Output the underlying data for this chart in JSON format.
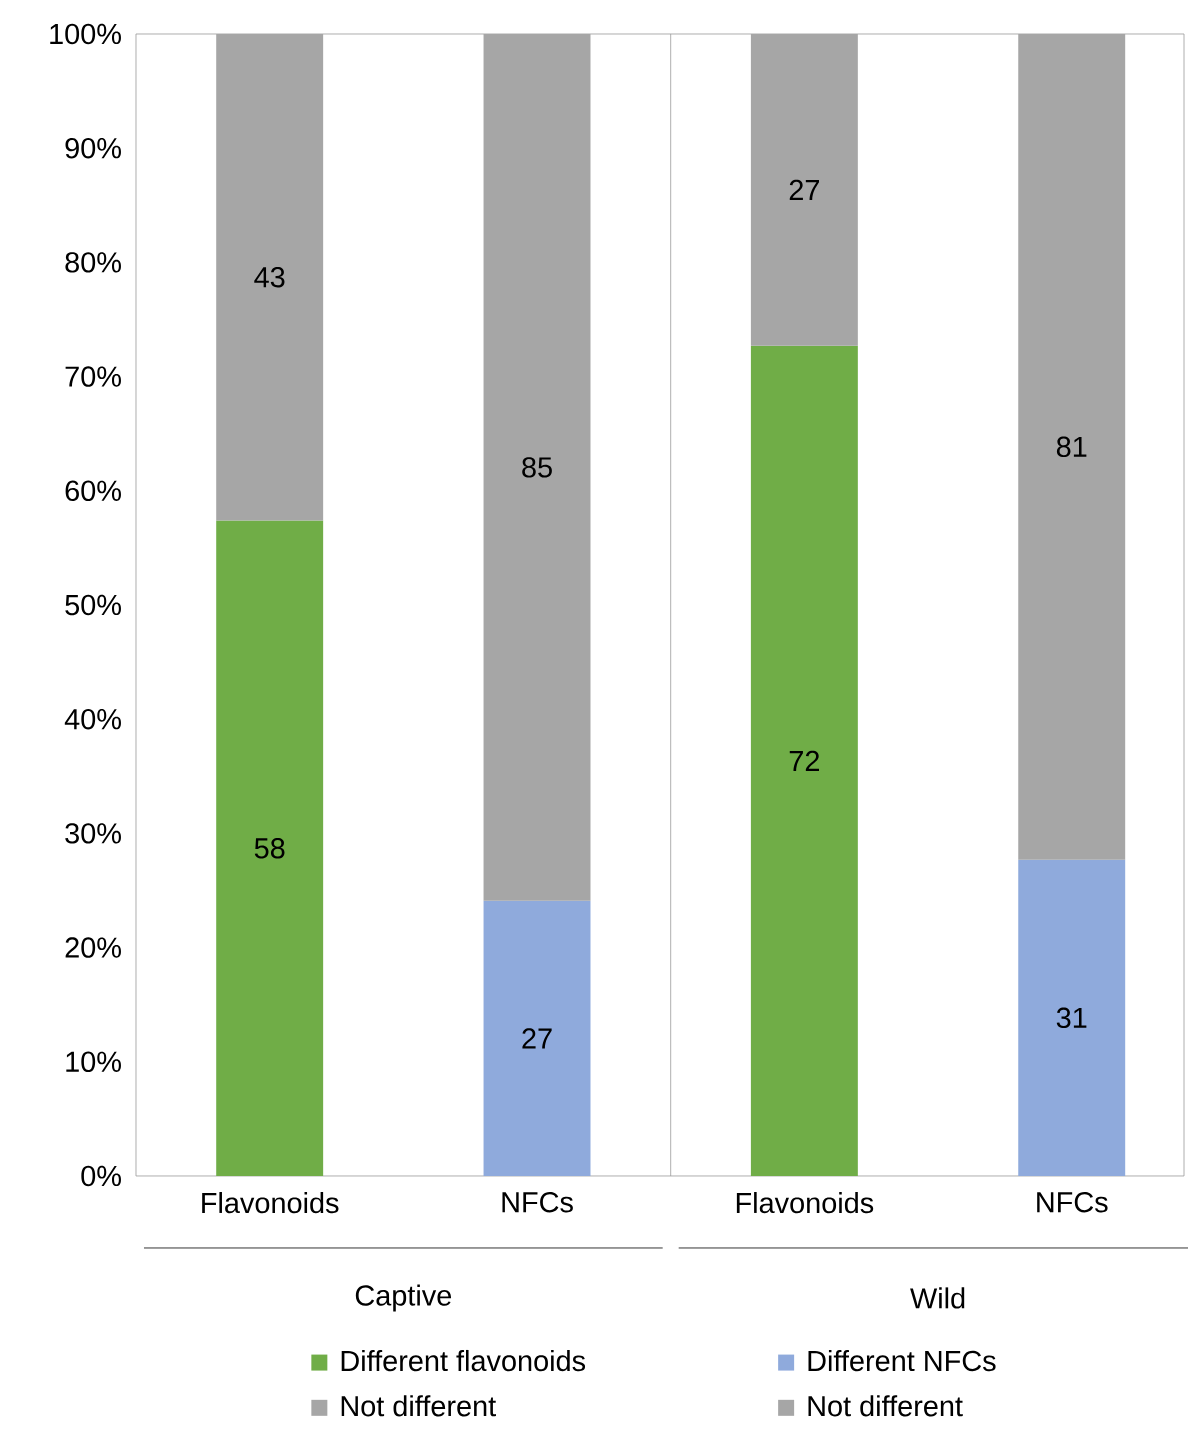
{
  "chart_data": {
    "type": "bar",
    "stacked": true,
    "categories": [
      "Flavonoids",
      "NFCs",
      "Flavonoids",
      "NFCs"
    ],
    "series": [
      {
        "name": "Different flavonoids",
        "color": "#70ad47",
        "values": [
          57.4,
          null,
          72.7,
          null
        ]
      },
      {
        "name": "Not different",
        "color": "#a6a6a6",
        "values": [
          42.6,
          null,
          27.3,
          null
        ]
      },
      {
        "name": "Different NFCs",
        "color": "#8faadc",
        "values": [
          null,
          24.1,
          null,
          27.7
        ]
      },
      {
        "name": "Not different",
        "color": "#a6a6a6",
        "values": [
          null,
          75.9,
          null,
          72.3
        ]
      }
    ],
    "ylim": [
      0,
      100
    ],
    "yticks": [
      {
        "value": 0,
        "label": "0%"
      },
      {
        "value": 10,
        "label": "10%"
      },
      {
        "value": 20,
        "label": "20%"
      },
      {
        "value": 30,
        "label": "30%"
      },
      {
        "value": 40,
        "label": "40%"
      },
      {
        "value": 50,
        "label": "50%"
      },
      {
        "value": 60,
        "label": "60%"
      },
      {
        "value": 70,
        "label": "70%"
      },
      {
        "value": 80,
        "label": "80%"
      },
      {
        "value": 90,
        "label": "90%"
      },
      {
        "value": 100,
        "label": "100%"
      }
    ],
    "annotations": [
      "Captive",
      "Wild",
      "58",
      "72",
      "43",
      "27",
      "27",
      "31",
      "85",
      "81"
    ],
    "legend": "bottom",
    "marker": "square"
  }
}
